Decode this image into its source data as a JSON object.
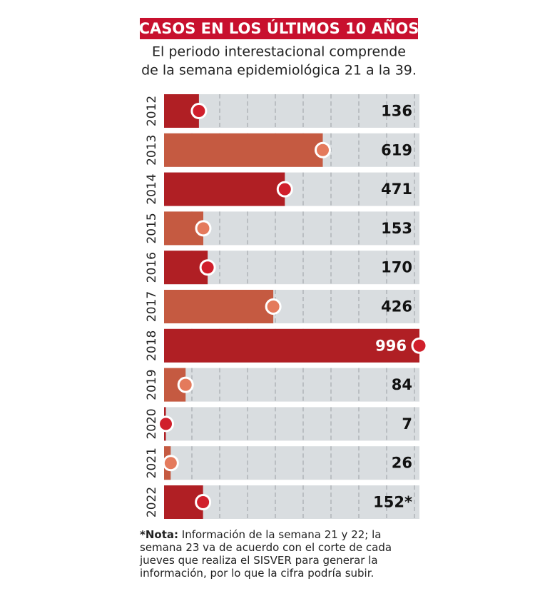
{
  "chart_data": {
    "type": "hbar",
    "title": "CASOS EN LOS ÚLTIMOS 10 AÑOS",
    "subtitle": [
      "El periodo interestacional comprende",
      "de la semana epidemiológica 21 a la 39."
    ],
    "categories": [
      "2012",
      "2013",
      "2014",
      "2015",
      "2016",
      "2017",
      "2018",
      "2019",
      "2020",
      "2021",
      "2022"
    ],
    "values": [
      136,
      619,
      471,
      153,
      170,
      426,
      996,
      84,
      7,
      26,
      152
    ],
    "value_labels": [
      "136",
      "619",
      "471",
      "153",
      "170",
      "426",
      "996",
      "84",
      "7",
      "26",
      "152*"
    ],
    "colors": [
      "#b01f24",
      "#c55a41",
      "#b01f24",
      "#c55a41",
      "#b01f24",
      "#c55a41",
      "#b01f24",
      "#c55a41",
      "#b01f24",
      "#c55a41",
      "#b01f24"
    ],
    "xlim": [
      0,
      996
    ],
    "note": {
      "label": "*Nota:",
      "text": "Información de la semana 21 y 22; la semana 23 va de acuerdo con el corte de cada jueves que realiza el SISVER para generar la información, por lo que la cifra podría subir."
    }
  }
}
